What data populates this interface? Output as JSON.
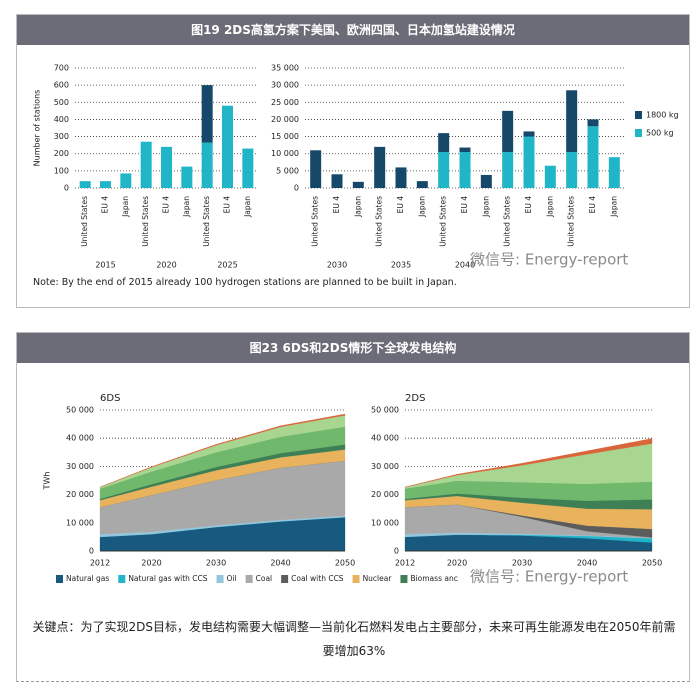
{
  "figure1": {
    "title": "图19 2DS高氢方案下美国、欧洲四国、日本加氢站建设情况",
    "note": "Note: By the end of 2015 already 100 hydrogen stations are planned to be built in Japan."
  },
  "figure2": {
    "title": "图23 6DS和2DS情形下全球发电结构",
    "caption": "关键点：为了实现2DS目标，发电结构需要大幅调整—当前化石燃料发电占主要部分，未来可再生能源发电在2050年前需要增加63%",
    "legend": [
      {
        "name": "Natural gas",
        "color": "#17597f"
      },
      {
        "name": "Natural gas with CCS",
        "color": "#21b5c8"
      },
      {
        "name": "Oil",
        "color": "#95c6dd"
      },
      {
        "name": "Coal",
        "color": "#a9a9aa"
      },
      {
        "name": "Coal with CCS",
        "color": "#5c5c5c"
      },
      {
        "name": "Nuclear",
        "color": "#e9b35e"
      },
      {
        "name": "Biomass anc",
        "color": "#3f7f56"
      }
    ]
  },
  "watermarks": [
    "微信号: Energy-report",
    "微信号: Energy-report"
  ],
  "chart_data": [
    {
      "type": "bar",
      "y_label": "Number of stations",
      "categories": [
        "United States",
        "EU 4",
        "Japan",
        "United States",
        "EU 4",
        "Japan",
        "United States",
        "EU 4",
        "Japan"
      ],
      "groups": [
        "2015",
        "2020",
        "2025"
      ],
      "series": [
        {
          "color": "#21b5c8",
          "values": [
            40,
            40,
            85,
            270,
            240,
            125,
            265,
            480,
            230
          ]
        },
        {
          "color": "#16486a",
          "values": [
            0,
            0,
            0,
            0,
            0,
            0,
            335,
            0,
            0
          ]
        }
      ],
      "ylim": [
        0,
        700
      ],
      "yticks": [
        0,
        100,
        200,
        300,
        400,
        500,
        600,
        700
      ],
      "grid": true
    },
    {
      "type": "bar",
      "categories": [
        "United States",
        "EU 4",
        "Japan",
        "United States",
        "EU 4",
        "Japan",
        "United States",
        "EU 4",
        "Japan",
        "United States",
        "EU 4",
        "Japan",
        "United States",
        "EU 4",
        "Japan"
      ],
      "groups": [
        "2030",
        "2035",
        "2040",
        null,
        null
      ],
      "series": [
        {
          "name": "500 kg",
          "color": "#21b5c8",
          "values": [
            0,
            0,
            0,
            0,
            0,
            0,
            10500,
            10500,
            0,
            10500,
            15000,
            6500,
            10500,
            18000,
            9000
          ]
        },
        {
          "name": "1800 kg",
          "color": "#16486a",
          "values": [
            11000,
            4000,
            1800,
            12000,
            6000,
            2000,
            5500,
            1300,
            3800,
            12000,
            1500,
            0,
            18000,
            2000,
            0
          ]
        }
      ],
      "ylim": [
        0,
        35000
      ],
      "yticks": [
        0,
        {
          "value": 5000,
          "label": "5 000"
        },
        {
          "value": 10000,
          "label": "10 000"
        },
        {
          "value": 15000,
          "label": "15 000"
        },
        {
          "value": 20000,
          "label": "20 000"
        },
        {
          "value": 25000,
          "label": "25 000"
        },
        {
          "value": 30000,
          "label": "30 000"
        },
        {
          "value": 35000,
          "label": "35 000"
        }
      ],
      "grid": true,
      "legend": "right"
    },
    {
      "type": "area",
      "title": "6DS",
      "y_label": "TWh",
      "x": [
        2012,
        2020,
        2030,
        2040,
        2050
      ],
      "series": [
        {
          "color": "#17597f",
          "values": [
            5000,
            6000,
            8500,
            10500,
            12000
          ]
        },
        {
          "color": "#21b5c8",
          "values": [
            0,
            0,
            0,
            0,
            0
          ]
        },
        {
          "color": "#95c6dd",
          "values": [
            1000,
            800,
            600,
            500,
            500
          ]
        },
        {
          "color": "#a9a9aa",
          "values": [
            9500,
            13000,
            16000,
            18500,
            19500
          ]
        },
        {
          "color": "#5c5c5c",
          "values": [
            0,
            0,
            0,
            0,
            0
          ]
        },
        {
          "color": "#e9b35e",
          "values": [
            2500,
            3000,
            3500,
            3700,
            4000
          ]
        },
        {
          "color": "#3f7f56",
          "values": [
            500,
            900,
            1200,
            1500,
            1800
          ]
        },
        {
          "color": "#6fb86c",
          "values": [
            3600,
            4500,
            5200,
            5800,
            6300
          ]
        },
        {
          "color": "#a8d690",
          "values": [
            500,
            1500,
            2500,
            3500,
            4000
          ]
        },
        {
          "color": "#d9653b",
          "values": [
            100,
            200,
            300,
            400,
            500
          ]
        }
      ],
      "xlim": [
        2012,
        2050
      ],
      "xticks": [
        2012,
        2020,
        2030,
        2040,
        2050
      ],
      "ylim": [
        0,
        50000
      ],
      "yticks": [
        0,
        {
          "value": 10000,
          "label": "10 000"
        },
        {
          "value": 20000,
          "label": "20 000"
        },
        {
          "value": 30000,
          "label": "30 000"
        },
        {
          "value": 40000,
          "label": "40 000"
        },
        {
          "value": 50000,
          "label": "50 000"
        }
      ],
      "grid": true
    },
    {
      "type": "area",
      "title": "2DS",
      "x": [
        2012,
        2020,
        2030,
        2040,
        2050
      ],
      "series": [
        {
          "color": "#17597f",
          "values": [
            5000,
            5800,
            5500,
            4500,
            3000
          ]
        },
        {
          "color": "#21b5c8",
          "values": [
            0,
            0,
            200,
            800,
            1500
          ]
        },
        {
          "color": "#95c6dd",
          "values": [
            1000,
            700,
            400,
            200,
            100
          ]
        },
        {
          "color": "#a9a9aa",
          "values": [
            9500,
            10000,
            6000,
            1500,
            200
          ]
        },
        {
          "color": "#5c5c5c",
          "values": [
            0,
            0,
            500,
            2000,
            3000
          ]
        },
        {
          "color": "#e9b35e",
          "values": [
            2500,
            3000,
            4500,
            6000,
            7000
          ]
        },
        {
          "color": "#3f7f56",
          "values": [
            500,
            900,
            1800,
            2800,
            3500
          ]
        },
        {
          "color": "#6fb86c",
          "values": [
            3600,
            4500,
            5500,
            6000,
            6300
          ]
        },
        {
          "color": "#a8d690",
          "values": [
            500,
            2000,
            6000,
            10500,
            13500
          ]
        },
        {
          "color": "#d9653b",
          "values": [
            100,
            300,
            700,
            1200,
            1800
          ]
        }
      ],
      "xlim": [
        2012,
        2050
      ],
      "xticks": [
        2012,
        2020,
        2030,
        2040,
        2050
      ],
      "ylim": [
        0,
        50000
      ],
      "yticks": [
        0,
        {
          "value": 10000,
          "label": "10 000"
        },
        {
          "value": 20000,
          "label": "20 000"
        },
        {
          "value": 30000,
          "label": "30 000"
        },
        {
          "value": 40000,
          "label": "40 000"
        },
        {
          "value": 50000,
          "label": "50 000"
        }
      ],
      "grid": true
    }
  ]
}
